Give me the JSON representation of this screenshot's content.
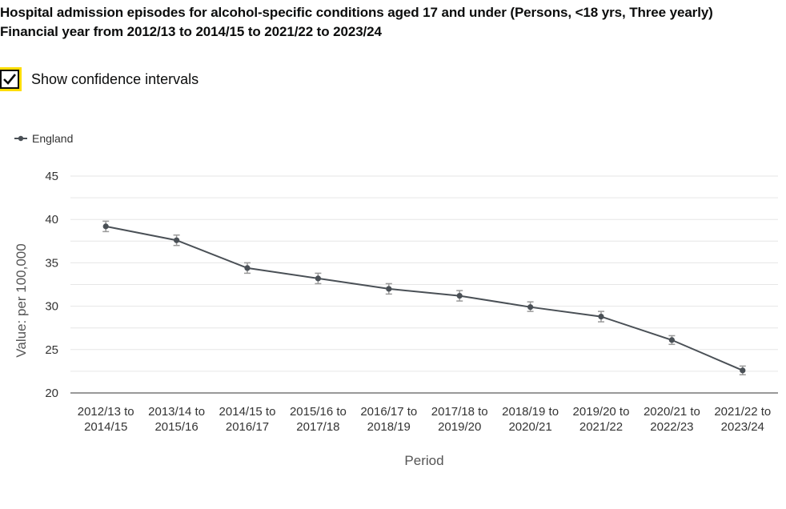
{
  "page": {
    "title_line1": "Hospital admission episodes for alcohol-specific conditions aged 17 and under (Persons, <18 yrs, Three yearly)",
    "title_line2": "Financial year from 2012/13 to 2014/15 to 2021/22 to 2023/24"
  },
  "controls": {
    "confidence_intervals_label": "Show confidence intervals",
    "confidence_intervals_checked": true
  },
  "colors": {
    "series": "#4a5056",
    "ci": "#999999",
    "grid": "#e6e6e6",
    "axis": "#333333",
    "checkbox_focus": "#ffdd00"
  },
  "chart_data": {
    "type": "line",
    "xlabel": "Period",
    "ylabel": "Value: per 100,000",
    "ylim": [
      20,
      45
    ],
    "yticks": [
      20,
      25,
      30,
      35,
      40,
      45
    ],
    "grid": true,
    "legend_position": "top-left",
    "categories": [
      [
        "2012/13 to",
        "2014/15"
      ],
      [
        "2013/14 to",
        "2015/16"
      ],
      [
        "2014/15 to",
        "2016/17"
      ],
      [
        "2015/16 to",
        "2017/18"
      ],
      [
        "2016/17 to",
        "2018/19"
      ],
      [
        "2017/18 to",
        "2019/20"
      ],
      [
        "2018/19 to",
        "2020/21"
      ],
      [
        "2019/20 to",
        "2021/22"
      ],
      [
        "2020/21 to",
        "2022/23"
      ],
      [
        "2021/22 to",
        "2023/24"
      ]
    ],
    "series": [
      {
        "name": "England",
        "values": [
          39.2,
          37.6,
          34.4,
          33.2,
          32.0,
          31.2,
          29.9,
          28.8,
          26.1,
          22.6
        ],
        "ci_lower": [
          38.6,
          37.0,
          33.8,
          32.6,
          31.4,
          30.6,
          29.4,
          28.2,
          25.6,
          22.1
        ],
        "ci_upper": [
          39.8,
          38.2,
          35.0,
          33.8,
          32.6,
          31.8,
          30.5,
          29.4,
          26.6,
          23.1
        ]
      }
    ]
  }
}
